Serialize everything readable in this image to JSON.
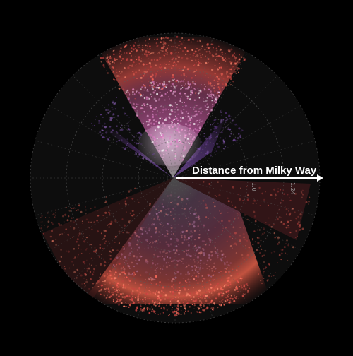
{
  "figure": {
    "arrow_label": "Distance from Milky Way",
    "tick_labels": [
      "1.0",
      "1.24"
    ]
  },
  "colors": {
    "background": "#000000",
    "disk": "#0d0d0d",
    "grid": "#5a5a5a",
    "arrow": "#ffffff",
    "shell_outer": "#e0524a",
    "cone_inner": "#c85fa8",
    "cone_core": "#f2b6e0",
    "side_wedge": "#6b3f9a"
  }
}
